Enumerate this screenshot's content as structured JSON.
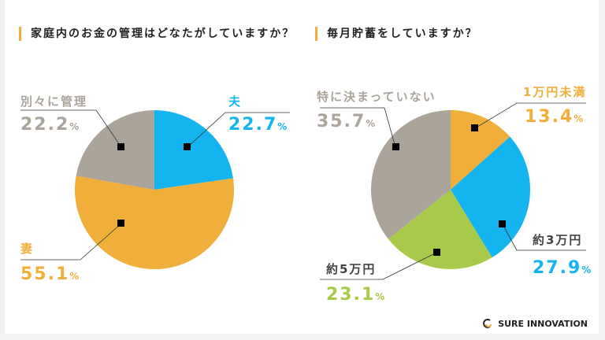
{
  "chart_data": [
    {
      "type": "pie",
      "title": "家庭内のお金の管理はどなたがしていますか？",
      "slices": [
        {
          "label": "夫",
          "value": 22.7,
          "color": "#14b4f0"
        },
        {
          "label": "妻",
          "value": 55.1,
          "color": "#f0ae3a"
        },
        {
          "label": "別々に管理",
          "value": 22.2,
          "color": "#aba49b"
        }
      ],
      "unit": "%"
    },
    {
      "type": "pie",
      "title": "毎月貯蓄をしていますか？",
      "slices": [
        {
          "label": "1万円未満",
          "value": 13.4,
          "color": "#f0ae3a"
        },
        {
          "label": "約3万円",
          "value": 27.9,
          "color": "#14b4f0"
        },
        {
          "label": "約5万円",
          "value": 23.1,
          "color": "#a9c94a"
        },
        {
          "label": "特に決まっていない",
          "value": 35.7,
          "color": "#aba49b"
        }
      ],
      "unit": "%"
    }
  ],
  "brand": "SURE INNOVATION"
}
